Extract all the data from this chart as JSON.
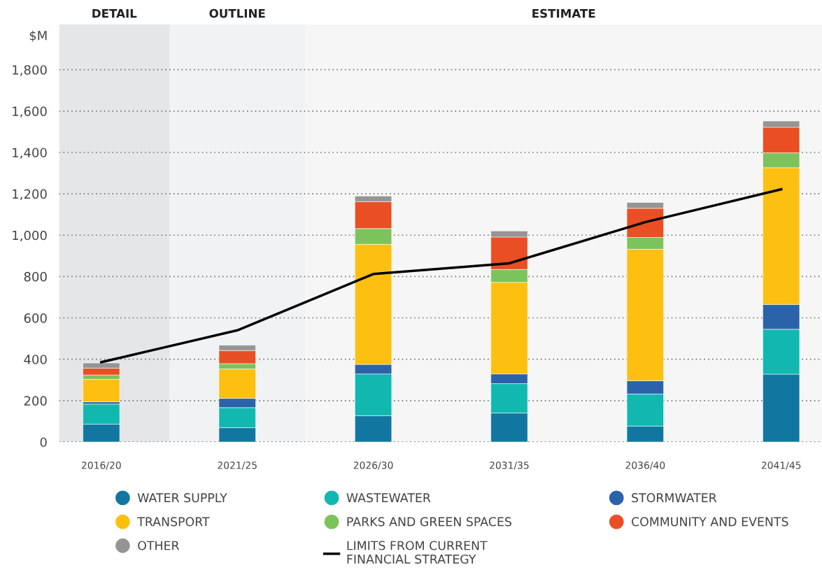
{
  "chart_data": {
    "type": "bar",
    "stacked": true,
    "ylabel": "$M",
    "categories": [
      "2016/20",
      "2021/25",
      "2026/30",
      "2031/35",
      "2036/40",
      "2041/45"
    ],
    "series": [
      {
        "name": "WATER SUPPLY",
        "color": "#1177a0",
        "values": [
          86,
          69,
          127,
          140,
          77,
          328
        ]
      },
      {
        "name": "WASTEWATER",
        "color": "#10b8b0",
        "values": [
          97,
          97,
          202,
          142,
          155,
          217
        ]
      },
      {
        "name": "STORMWATER",
        "color": "#2a63aa",
        "values": [
          11,
          45,
          46,
          47,
          64,
          120
        ]
      },
      {
        "name": "TRANSPORT",
        "color": "#fdc010",
        "values": [
          109,
          142,
          581,
          443,
          636,
          661
        ]
      },
      {
        "name": "PARKS AND GREEN SPACES",
        "color": "#7dc35c",
        "values": [
          21,
          26,
          76,
          62,
          57,
          72
        ]
      },
      {
        "name": "COMMUNITY AND EVENTS",
        "color": "#ea4e24",
        "values": [
          33,
          63,
          130,
          157,
          141,
          124
        ]
      },
      {
        "name": "OTHER",
        "color": "#959595",
        "values": [
          25,
          26,
          27,
          29,
          28,
          30
        ]
      },
      {
        "name": "LIMITS FROM CURRENT\nFINANCIAL STRATEGY",
        "type": "line",
        "color": "#000000",
        "values": [
          386,
          540,
          812,
          864,
          1063,
          1222
        ]
      }
    ],
    "bands": [
      {
        "axis": "x",
        "from": "2016/20",
        "to": "2016/20",
        "label": "DETAIL",
        "color": "#e5e6e8"
      },
      {
        "axis": "x",
        "from": "2021/25",
        "to": "2021/25",
        "label": "OUTLINE",
        "color": "#f1f2f4"
      },
      {
        "axis": "x",
        "from": "2026/30",
        "to": "2041/45",
        "label": "ESTIMATE",
        "color": "#f6f6f7"
      }
    ],
    "ylim": [
      0,
      2020
    ],
    "yticks": [
      0,
      200,
      400,
      600,
      800,
      {
        "value": 1000,
        "label": "1,000"
      },
      {
        "value": 1200,
        "label": "1,200"
      },
      {
        "value": 1400,
        "label": "1,400"
      },
      {
        "value": 1600,
        "label": "1,600"
      },
      {
        "value": 1800,
        "label": "1,800"
      }
    ],
    "grid": "y",
    "legend": "bottom"
  }
}
